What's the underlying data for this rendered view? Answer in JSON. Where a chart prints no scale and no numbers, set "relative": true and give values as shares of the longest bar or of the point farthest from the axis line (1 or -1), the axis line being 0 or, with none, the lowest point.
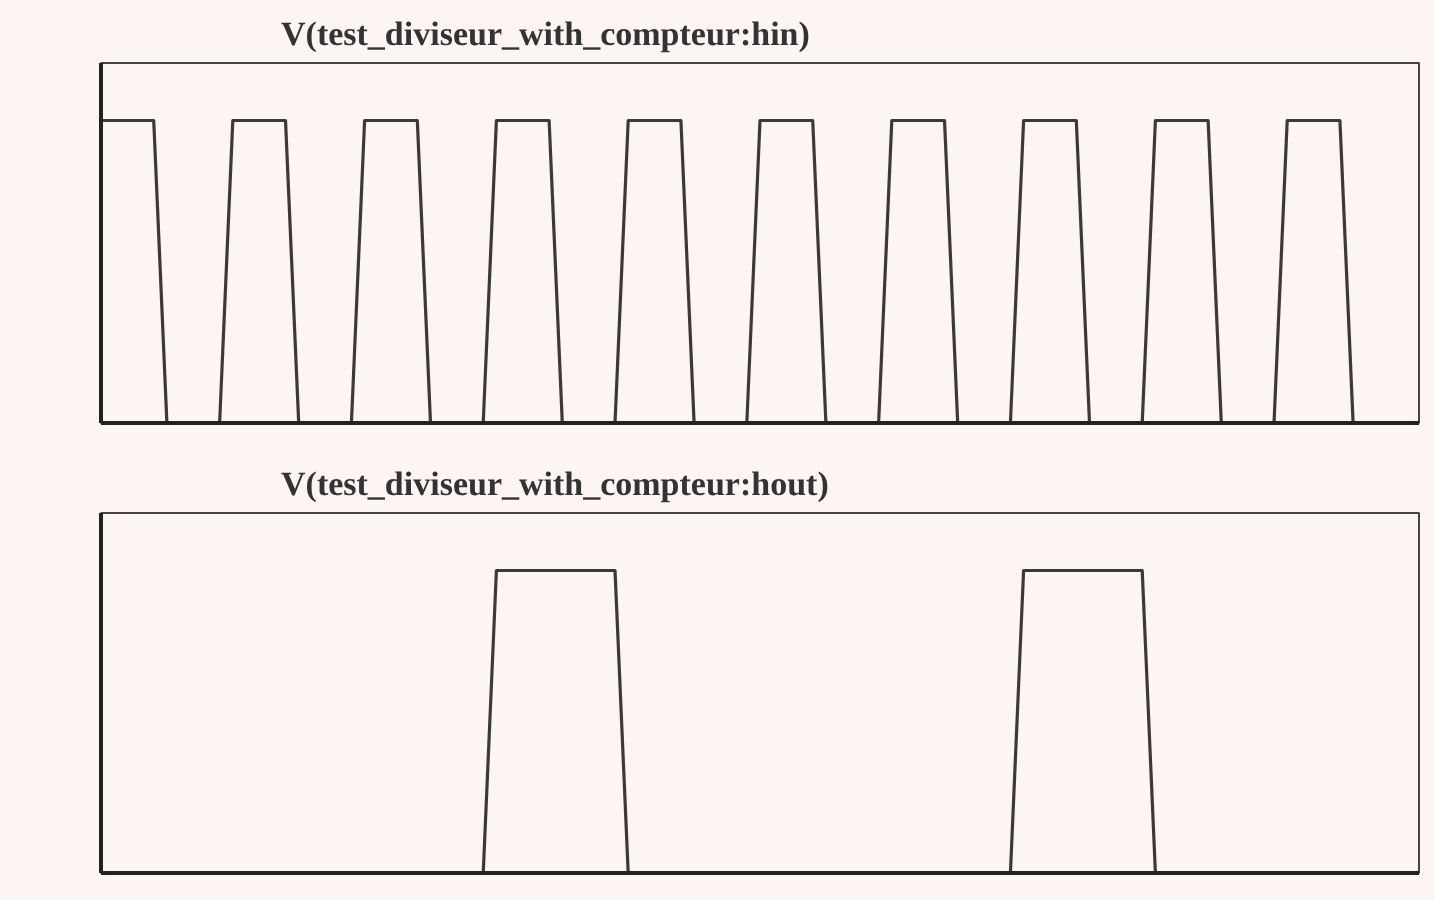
{
  "chart_data": [
    {
      "type": "line",
      "title": "V(test_diviseur_with_compteur:hin)",
      "relative": true,
      "categories": [
        null,
        null,
        null,
        null,
        null,
        null,
        null,
        null,
        null,
        null,
        null,
        null,
        null,
        null,
        null,
        null,
        null,
        null,
        null,
        null,
        null,
        null,
        null,
        null,
        null,
        null,
        null,
        null,
        null,
        null,
        null,
        null,
        null,
        null,
        null,
        null,
        null,
        null,
        null,
        null,
        null,
        null,
        null,
        null,
        null,
        null,
        null,
        null,
        null,
        null,
        null,
        null,
        null,
        null,
        null,
        null,
        null,
        null,
        null,
        null,
        null,
        null,
        null,
        null,
        null,
        null,
        null,
        null,
        null,
        null,
        null,
        null,
        null,
        null,
        null,
        null,
        null,
        null,
        null,
        null,
        null,
        null,
        null,
        null,
        null,
        null,
        null,
        null,
        null,
        null,
        null,
        null,
        null,
        null,
        null,
        null,
        null,
        null,
        null,
        null,
        null
      ],
      "series": [
        {
          "color": "#3a3a3a",
          "values": [
            1,
            1,
            1,
            1,
            1,
            0,
            0,
            0,
            0,
            0,
            1,
            1,
            1,
            1,
            1,
            0,
            0,
            0,
            0,
            0,
            1,
            1,
            1,
            1,
            1,
            0,
            0,
            0,
            0,
            0,
            1,
            1,
            1,
            1,
            1,
            0,
            0,
            0,
            0,
            0,
            1,
            1,
            1,
            1,
            1,
            0,
            0,
            0,
            0,
            0,
            1,
            1,
            1,
            1,
            1,
            0,
            0,
            0,
            0,
            0,
            1,
            1,
            1,
            1,
            1,
            0,
            0,
            0,
            0,
            0,
            1,
            1,
            1,
            1,
            1,
            0,
            0,
            0,
            0,
            0,
            1,
            1,
            1,
            1,
            1,
            0,
            0,
            0,
            0,
            0,
            1,
            1,
            1,
            1,
            1,
            0,
            0,
            0,
            0,
            0,
            0
          ]
        }
      ]
    },
    {
      "type": "line",
      "title": "V(test_diviseur_with_compteur:hout)",
      "relative": true,
      "categories": [
        null,
        null,
        null,
        null,
        null,
        null,
        null,
        null,
        null,
        null,
        null,
        null,
        null,
        null,
        null,
        null,
        null,
        null,
        null,
        null,
        null,
        null,
        null,
        null,
        null,
        null,
        null,
        null,
        null,
        null,
        null,
        null,
        null,
        null,
        null,
        null,
        null,
        null,
        null,
        null,
        null,
        null,
        null,
        null,
        null,
        null,
        null,
        null,
        null,
        null,
        null,
        null,
        null,
        null,
        null,
        null,
        null,
        null,
        null,
        null,
        null,
        null,
        null,
        null,
        null,
        null,
        null,
        null,
        null,
        null,
        null,
        null,
        null,
        null,
        null,
        null,
        null,
        null,
        null,
        null,
        null,
        null,
        null,
        null,
        null,
        null,
        null,
        null,
        null,
        null,
        null,
        null,
        null,
        null,
        null,
        null,
        null,
        null,
        null,
        null,
        null
      ],
      "series": [
        {
          "color": "#3a3a3a",
          "values": [
            0,
            0,
            0,
            0,
            0,
            0,
            0,
            0,
            0,
            0,
            0,
            0,
            0,
            0,
            0,
            0,
            0,
            0,
            0,
            0,
            0,
            0,
            0,
            0,
            0,
            0,
            0,
            0,
            0,
            0,
            1,
            1,
            1,
            1,
            1,
            1,
            1,
            1,
            1,
            1,
            0,
            0,
            0,
            0,
            0,
            0,
            0,
            0,
            0,
            0,
            0,
            0,
            0,
            0,
            0,
            0,
            0,
            0,
            0,
            0,
            0,
            0,
            0,
            0,
            0,
            0,
            0,
            0,
            0,
            0,
            1,
            1,
            1,
            1,
            1,
            1,
            1,
            1,
            1,
            1,
            0,
            0,
            0,
            0,
            0,
            0,
            0,
            0,
            0,
            0,
            0,
            0,
            0,
            0,
            0,
            0,
            0,
            0,
            0,
            0,
            0
          ]
        }
      ]
    }
  ]
}
